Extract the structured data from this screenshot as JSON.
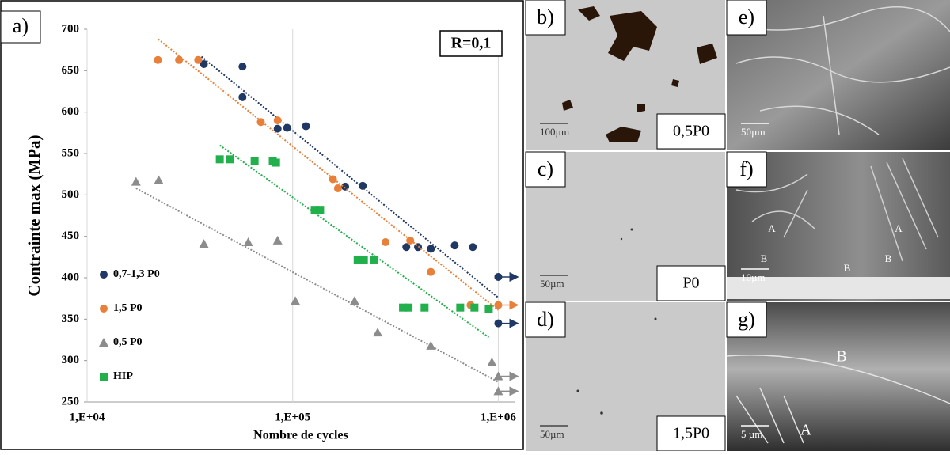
{
  "chart_data": {
    "type": "scatter",
    "panel_label": "a)",
    "annotation": "R=0,1",
    "xlabel": "Nombre de cycles",
    "ylabel": "Contrainte max (MPa)",
    "xscale": "log",
    "xlim": [
      10000,
      1200000
    ],
    "xticks": [
      {
        "value": 10000,
        "label": "1,E+04"
      },
      {
        "value": 100000,
        "label": "1,E+05"
      },
      {
        "value": 1000000,
        "label": "1,E+06"
      }
    ],
    "ylim": [
      250,
      700
    ],
    "yticks": [
      250,
      300,
      350,
      400,
      450,
      500,
      550,
      600,
      650,
      700
    ],
    "grid": "x",
    "series": [
      {
        "name": "0,7-1,3 P0",
        "color": "#203864",
        "marker": "circle",
        "x": [
          37000,
          57000,
          57000,
          84500,
          94000,
          116000,
          180000,
          219000,
          357000,
          407000,
          470000,
          614000,
          752000,
          1000000,
          1000000
        ],
        "values": [
          658,
          655,
          618,
          580,
          581,
          583,
          510,
          511,
          437,
          437,
          435,
          439,
          437,
          401,
          345
        ],
        "trend": {
          "x": [
            36000,
            1000000
          ],
          "values": [
            667,
            376
          ]
        }
      },
      {
        "name": "1,5 P0",
        "color": "#e8803a",
        "marker": "circle",
        "x": [
          22100,
          28000,
          34700,
          70000,
          84500,
          157000,
          166000,
          283000,
          373000,
          470000,
          733000,
          1000000
        ],
        "values": [
          663,
          663,
          663,
          588,
          590,
          519,
          508,
          443,
          445,
          407,
          367,
          367
        ],
        "trend": {
          "x": [
            22200,
            1000000
          ],
          "values": [
            688,
            361
          ]
        }
      },
      {
        "name": "0,5 P0",
        "color": "#8c8c8c",
        "marker": "triangle",
        "x": [
          17300,
          22300,
          37000,
          60800,
          84500,
          103000,
          200000,
          259000,
          470000,
          931000,
          1000000,
          1000000
        ],
        "values": [
          516,
          518,
          441,
          443,
          445,
          372,
          372,
          334,
          318,
          298,
          281,
          263
        ],
        "trend": {
          "x": [
            17300,
            1000000
          ],
          "values": [
            508,
            274
          ]
        }
      },
      {
        "name": "HIP",
        "color": "#21b04b",
        "marker": "square",
        "x": [
          44200,
          49500,
          65300,
          80000,
          83000,
          128000,
          136000,
          207000,
          222000,
          248000,
          344000,
          366000,
          438000,
          653000,
          766000,
          899000
        ],
        "values": [
          543,
          543,
          541,
          541,
          539,
          482,
          482,
          422,
          422,
          422,
          364,
          364,
          364,
          364,
          364,
          362
        ],
        "trend": {
          "x": [
            44200,
            899000
          ],
          "values": [
            560,
            328
          ]
        }
      }
    ]
  },
  "panels": [
    {
      "label": "b)",
      "caption": "0,5P0",
      "scale": "100µm"
    },
    {
      "label": "c)",
      "caption": "P0",
      "scale": "50µm"
    },
    {
      "label": "d)",
      "caption": "1,5P0",
      "scale": "50µm"
    },
    {
      "label": "e)",
      "scale": "50µm"
    },
    {
      "label": "f)",
      "scale": "10µm",
      "marks": [
        "A",
        "A",
        "B",
        "B",
        "B"
      ]
    },
    {
      "label": "g)",
      "scale": "5 µm",
      "marks": [
        "B",
        "A"
      ]
    }
  ]
}
